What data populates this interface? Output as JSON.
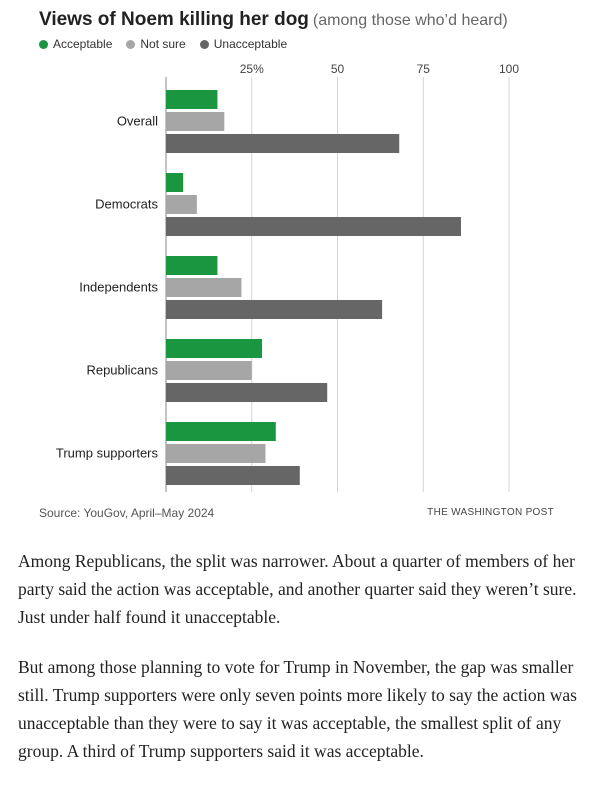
{
  "header": {
    "title": "Views of Noem killing her dog",
    "subtitle": "(among those who’d heard)"
  },
  "legend": [
    {
      "label": "Acceptable",
      "color": "#1a9641"
    },
    {
      "label": "Not sure",
      "color": "#a6a6a6"
    },
    {
      "label": "Unacceptable",
      "color": "#666666"
    }
  ],
  "chart_data": {
    "type": "bar",
    "orientation": "horizontal",
    "categories": [
      "Overall",
      "Democrats",
      "Independents",
      "Republicans",
      "Trump supporters"
    ],
    "series": [
      {
        "name": "Acceptable",
        "color": "#1a9641",
        "values": [
          15,
          5,
          15,
          28,
          32
        ]
      },
      {
        "name": "Not sure",
        "color": "#a6a6a6",
        "values": [
          17,
          9,
          22,
          25,
          29
        ]
      },
      {
        "name": "Unacceptable",
        "color": "#666666",
        "values": [
          68,
          86,
          63,
          47,
          39
        ]
      }
    ],
    "xlim": [
      0,
      100
    ],
    "ticks": [
      0,
      25,
      50,
      75,
      100
    ],
    "tick_labels": [
      "",
      "25%",
      "50",
      "75",
      "100"
    ],
    "grid": true,
    "legend_position": "top-left"
  },
  "footer": {
    "source": "Source: YouGov, April–May 2024",
    "credit": "THE WASHINGTON POST"
  },
  "article": {
    "paragraphs": [
      "Among Republicans, the split was narrower. About a quarter of members of her party said the action was acceptable, and another quarter said they weren’t sure. Just under half found it unacceptable.",
      "But among those planning to vote for Trump in November, the gap was smaller still. Trump supporters were only seven points more likely to say the action was unacceptable than they were to say it was acceptable, the smallest split of any group. A third of Trump supporters said it was acceptable."
    ]
  }
}
